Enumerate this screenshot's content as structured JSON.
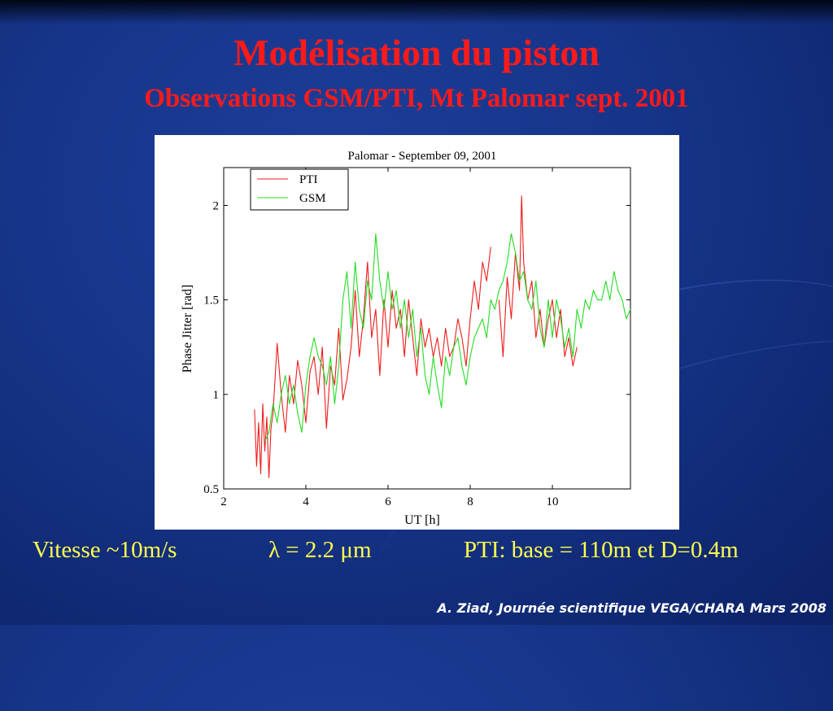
{
  "slide": {
    "title": "Modélisation du piston",
    "subtitle": "Observations GSM/PTI, Mt Palomar sept. 2001",
    "speed": "Vitesse ~10m/s",
    "wavelength": "λ = 2.2 μm",
    "pti_info": "PTI:  base = 110m et D=0.4m",
    "credit": "A. Ziad, Journée scientifique VEGA/CHARA Mars 2008"
  },
  "colors": {
    "title": "#ff1a1a",
    "bottom_text": "#ffff4d",
    "credit": "#ffffff",
    "pti": "#ee1c1c",
    "gsm": "#22dd22"
  },
  "chart_data": {
    "type": "line",
    "title": "Palomar - September 09, 2001",
    "xlabel": "UT [h]",
    "ylabel": "Phase Jitter [rad]",
    "xlim": [
      2,
      11.9
    ],
    "ylim": [
      0.5,
      2.2
    ],
    "xticks": [
      2,
      4,
      6,
      8,
      10
    ],
    "yticks": [
      0.5,
      1,
      1.5,
      2
    ],
    "xtick_labels": [
      "2",
      "4",
      "6",
      "8",
      "10"
    ],
    "ytick_labels": [
      "0.5",
      "1",
      "1.5",
      "2"
    ],
    "grid": false,
    "legend_position": "top-left",
    "series": [
      {
        "name": "PTI",
        "color": "#ee1c1c",
        "x": [
          2.75,
          2.8,
          2.85,
          2.9,
          2.95,
          3.0,
          3.05,
          3.1,
          3.15,
          3.2,
          3.3,
          3.4,
          3.5,
          3.6,
          3.7,
          3.8,
          3.9,
          4.0,
          4.1,
          4.2,
          4.3,
          4.4,
          4.5,
          4.6,
          4.7,
          4.8,
          4.9,
          5.0,
          5.1,
          5.2,
          5.3,
          5.4,
          5.5,
          5.6,
          5.7,
          5.8,
          5.9,
          6.0,
          6.1,
          6.2,
          6.3,
          6.4,
          6.5,
          6.6,
          6.7,
          6.8,
          6.9,
          7.0,
          7.1,
          7.2,
          7.3,
          7.4,
          7.5,
          7.6,
          7.7,
          7.8,
          7.9,
          8.0,
          8.1,
          8.2,
          8.3,
          8.4,
          8.5,
          null,
          8.7,
          8.8,
          8.9,
          9.0,
          9.1,
          9.2,
          9.25,
          9.3,
          9.4,
          9.5,
          9.6,
          9.7,
          9.8,
          9.9,
          10.0,
          10.1,
          10.2,
          10.3,
          10.4,
          10.5,
          10.6
        ],
        "y": [
          0.92,
          0.62,
          0.85,
          0.58,
          0.95,
          0.7,
          0.88,
          0.56,
          0.82,
          0.9,
          1.27,
          1.0,
          0.8,
          1.1,
          0.95,
          1.18,
          1.05,
          0.85,
          1.12,
          1.2,
          1.0,
          1.25,
          0.82,
          1.15,
          1.05,
          1.35,
          0.97,
          1.08,
          1.25,
          1.55,
          1.2,
          1.4,
          1.7,
          1.3,
          1.45,
          1.1,
          1.5,
          1.25,
          1.55,
          1.35,
          1.45,
          1.2,
          1.5,
          1.3,
          1.1,
          1.4,
          1.25,
          1.35,
          1.2,
          1.3,
          1.15,
          1.35,
          1.2,
          1.25,
          1.4,
          1.3,
          1.15,
          1.4,
          1.6,
          1.45,
          1.7,
          1.6,
          1.78,
          null,
          1.5,
          1.2,
          1.62,
          1.4,
          1.75,
          1.55,
          2.05,
          1.7,
          1.5,
          1.6,
          1.3,
          1.45,
          1.25,
          1.4,
          1.5,
          1.3,
          1.45,
          1.2,
          1.3,
          1.15,
          1.25
        ]
      },
      {
        "name": "GSM",
        "color": "#22dd22",
        "x": [
          3.0,
          3.1,
          3.2,
          3.3,
          3.4,
          3.5,
          3.6,
          3.7,
          3.8,
          3.9,
          4.0,
          4.1,
          4.2,
          4.3,
          4.4,
          4.5,
          4.6,
          4.7,
          4.8,
          4.9,
          5.0,
          5.1,
          5.2,
          5.3,
          5.4,
          5.5,
          5.6,
          5.7,
          5.8,
          5.9,
          6.0,
          6.1,
          6.2,
          6.3,
          6.4,
          6.5,
          6.6,
          6.7,
          6.8,
          6.9,
          7.0,
          7.1,
          7.2,
          7.3,
          7.4,
          7.5,
          7.6,
          7.7,
          7.8,
          7.9,
          8.0,
          8.1,
          8.2,
          8.3,
          8.4,
          8.5,
          8.6,
          8.7,
          8.8,
          8.9,
          9.0,
          9.1,
          9.2,
          9.3,
          9.4,
          9.5,
          9.6,
          9.7,
          9.8,
          9.9,
          10.0,
          10.1,
          10.2,
          10.3,
          10.4,
          10.5,
          10.6,
          10.7,
          10.8,
          10.9,
          11.0,
          11.1,
          11.2,
          11.3,
          11.4,
          11.5,
          11.6,
          11.7,
          11.8,
          11.9
        ],
        "y": [
          0.75,
          0.8,
          0.95,
          0.85,
          1.0,
          1.1,
          0.95,
          1.05,
          0.9,
          0.8,
          1.05,
          1.2,
          1.3,
          1.2,
          1.15,
          1.05,
          1.2,
          0.95,
          1.15,
          1.5,
          1.65,
          1.35,
          1.7,
          1.45,
          1.35,
          1.6,
          1.5,
          1.85,
          1.6,
          1.45,
          1.65,
          1.45,
          1.55,
          1.35,
          1.5,
          1.3,
          1.45,
          1.2,
          1.35,
          1.1,
          1.0,
          1.2,
          1.05,
          0.93,
          1.2,
          1.1,
          1.25,
          1.3,
          1.15,
          1.05,
          1.2,
          1.3,
          1.35,
          1.4,
          1.3,
          1.5,
          1.45,
          1.55,
          1.6,
          1.7,
          1.85,
          1.75,
          1.6,
          1.65,
          1.5,
          1.45,
          1.6,
          1.35,
          1.25,
          1.5,
          1.3,
          1.5,
          1.4,
          1.25,
          1.35,
          1.2,
          1.45,
          1.35,
          1.5,
          1.45,
          1.55,
          1.5,
          1.5,
          1.6,
          1.5,
          1.65,
          1.55,
          1.5,
          1.4,
          1.45
        ]
      }
    ]
  }
}
